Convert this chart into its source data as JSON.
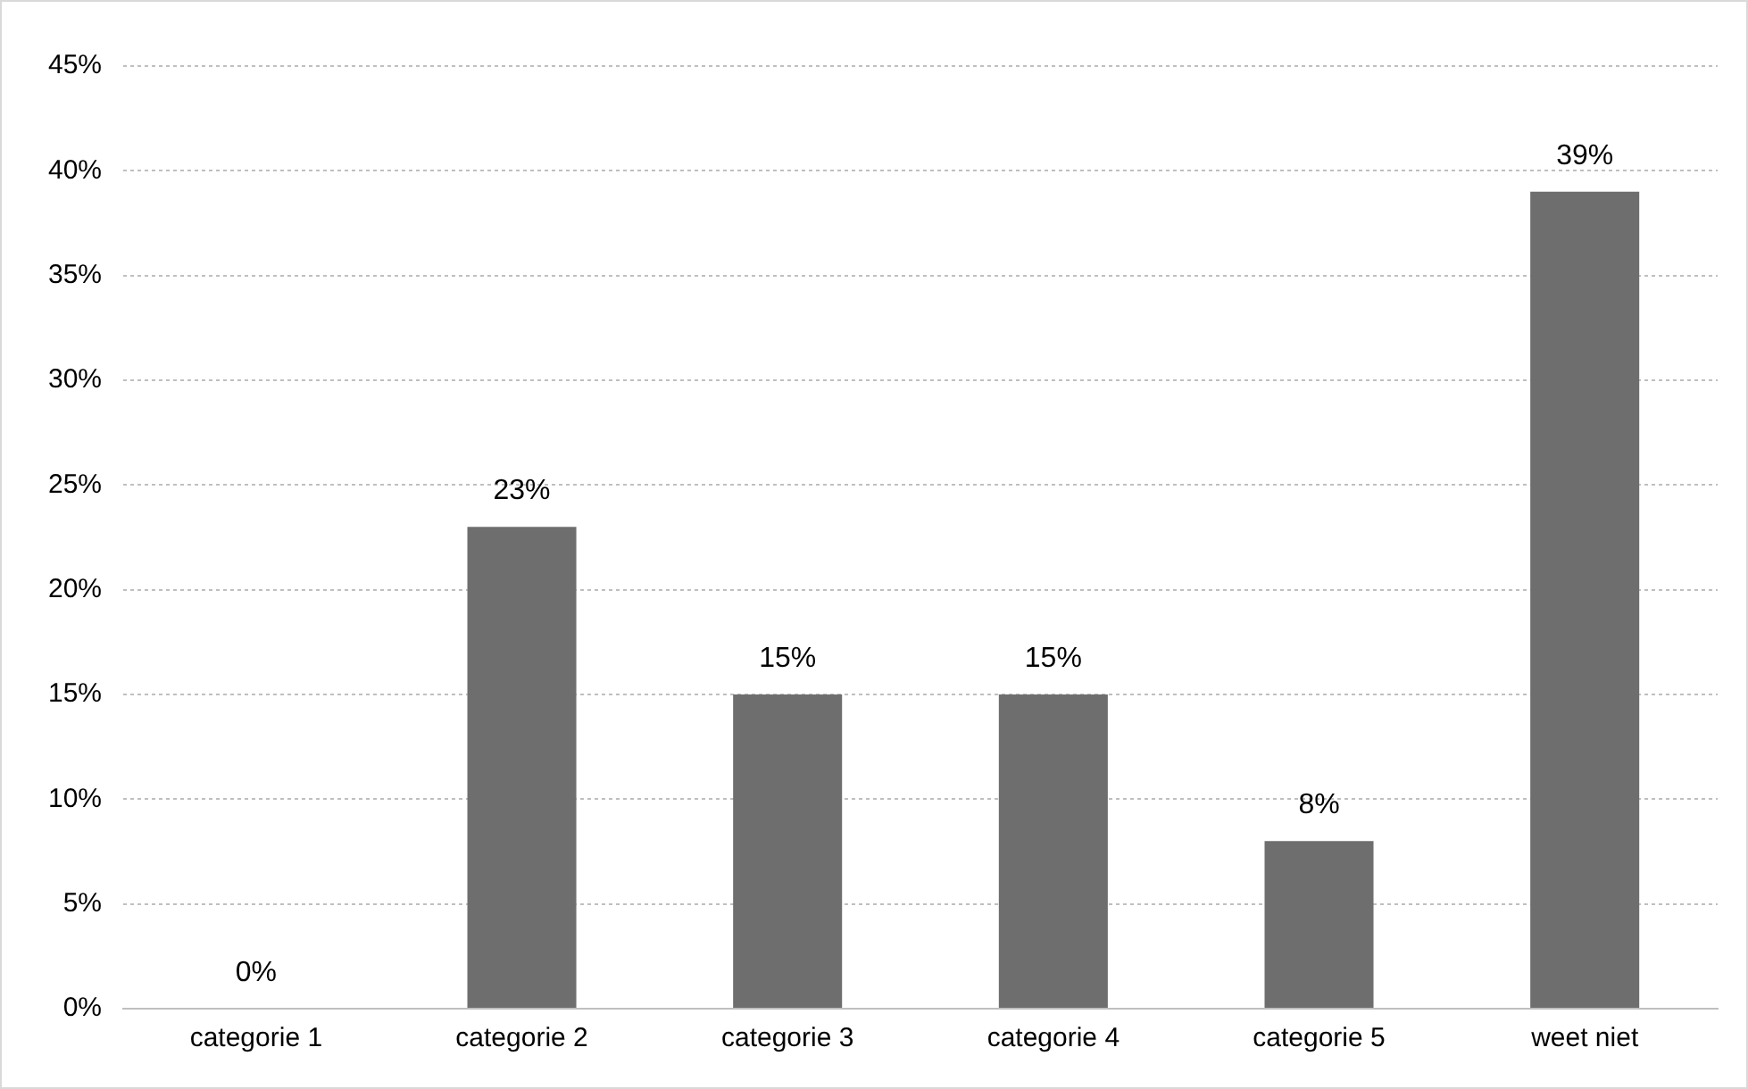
{
  "chart_data": {
    "type": "bar",
    "categories": [
      "categorie 1",
      "categorie 2",
      "categorie 3",
      "categorie 4",
      "categorie 5",
      "weet niet"
    ],
    "values": [
      0,
      23,
      15,
      15,
      8,
      39
    ],
    "value_labels": [
      "0%",
      "23%",
      "15%",
      "15%",
      "8%",
      "39%"
    ],
    "color": "#6e6e6e",
    "ylim": [
      0,
      45
    ],
    "yticks": [
      {
        "value": 0,
        "label": "0%"
      },
      {
        "value": 5,
        "label": "5%"
      },
      {
        "value": 10,
        "label": "10%"
      },
      {
        "value": 15,
        "label": "15%"
      },
      {
        "value": 20,
        "label": "20%"
      },
      {
        "value": 25,
        "label": "25%"
      },
      {
        "value": 30,
        "label": "30%"
      },
      {
        "value": 35,
        "label": "35%"
      },
      {
        "value": 40,
        "label": "40%"
      },
      {
        "value": 45,
        "label": "45%"
      }
    ],
    "grid": "y",
    "legend": false
  }
}
